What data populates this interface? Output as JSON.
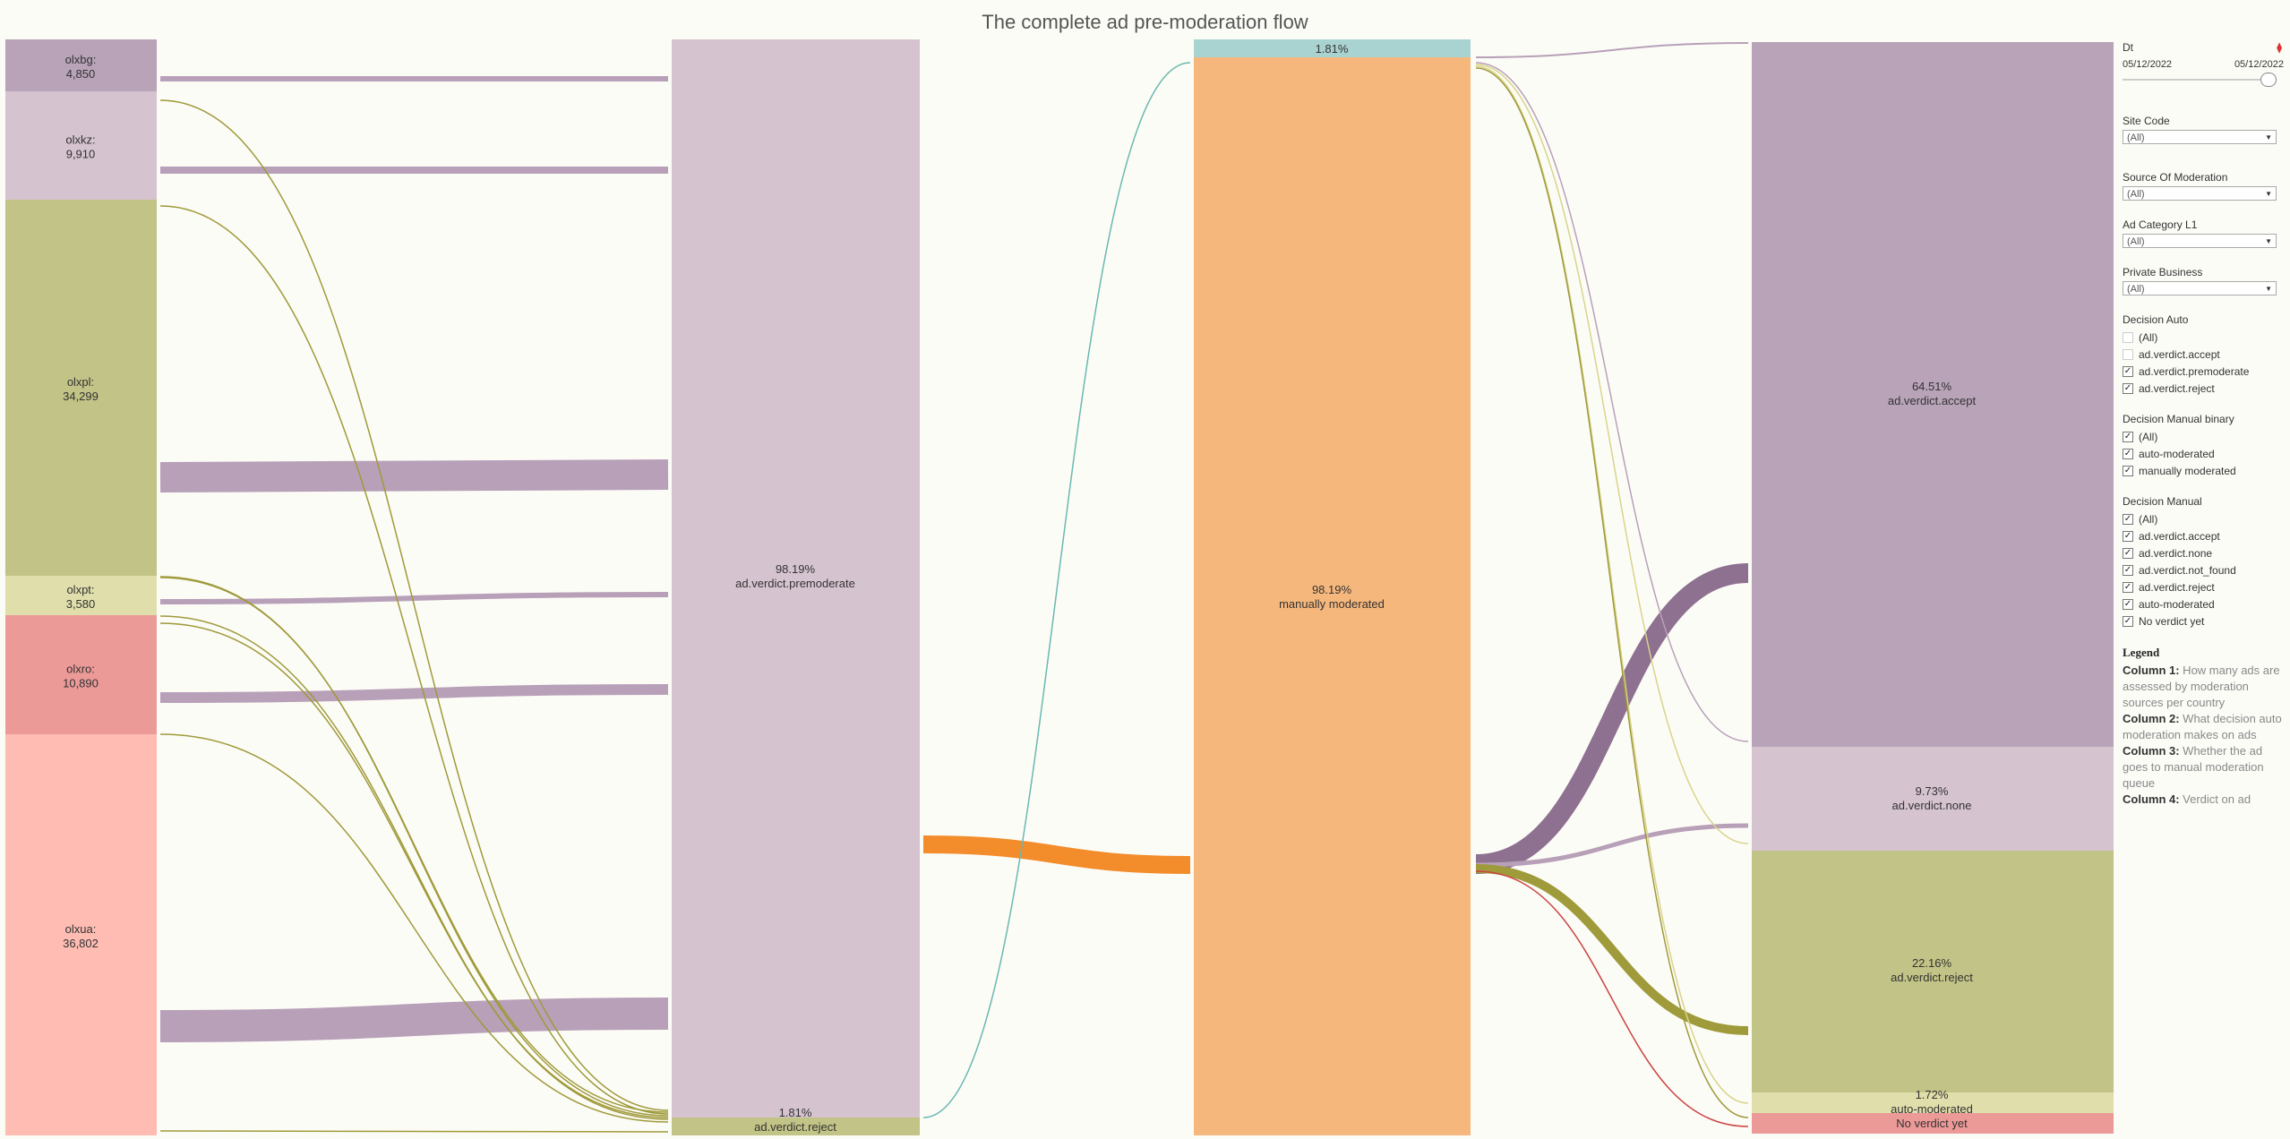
{
  "title": "The complete ad pre-moderation flow",
  "colors": {
    "olxbg": "#b8a3b8",
    "olxkz": "#d5c3cf",
    "olxpl": "#c2c386",
    "olxpt": "#e0dfab",
    "olxro": "#ec9a98",
    "olxua": "#febcb3",
    "premoderate": "#d5c3cf",
    "reject_c2": "#c2c386",
    "auto_moderated": "#a9d3d0",
    "manually_moderated": "#f6b77d",
    "accept": "#b8a3b8",
    "none": "#d5c3cf",
    "reject_c4": "#c2c386",
    "auto_moderated_c4": "#e0dfab",
    "no_verdict": "#ec9a98",
    "link_purple": "#b8a0b8",
    "link_olive": "#9f9a3a",
    "link_teal": "#6ab8b1",
    "link_orange": "#f38c2b",
    "link_dark_purple": "#8e7090",
    "link_pink": "#c44",
    "link_yellow": "#d8d48a"
  },
  "columns": {
    "countries": [
      {
        "key": "olxbg",
        "label": "olxbg:",
        "value": "4,850"
      },
      {
        "key": "olxkz",
        "label": "olxkz:",
        "value": "9,910"
      },
      {
        "key": "olxpl",
        "label": "olxpl:",
        "value": "34,299"
      },
      {
        "key": "olxpt",
        "label": "olxpt:",
        "value": "3,580"
      },
      {
        "key": "olxro",
        "label": "olxro:",
        "value": "10,890"
      },
      {
        "key": "olxua",
        "label": "olxua:",
        "value": "36,802"
      }
    ],
    "auto_decision": [
      {
        "key": "premoderate",
        "pct": "98.19%",
        "label": "ad.verdict.premoderate"
      },
      {
        "key": "reject_c2",
        "pct": "1.81%",
        "label": "ad.verdict.reject"
      }
    ],
    "manual_binary": [
      {
        "key": "auto_moderated",
        "pct": "1.81%",
        "label": "auto-moderated"
      },
      {
        "key": "manually_moderated",
        "pct": "98.19%",
        "label": "manually moderated"
      }
    ],
    "verdict": [
      {
        "key": "accept",
        "pct": "64.51%",
        "label": "ad.verdict.accept"
      },
      {
        "key": "none",
        "pct": "9.73%",
        "label": "ad.verdict.none"
      },
      {
        "key": "reject_c4",
        "pct": "22.16%",
        "label": "ad.verdict.reject"
      },
      {
        "key": "auto_moderated_c4",
        "pct": "1.72%",
        "label": "auto-moderated"
      },
      {
        "key": "no_verdict",
        "pct": "1.88%",
        "label": "No verdict yet"
      }
    ]
  },
  "filters": {
    "dt": {
      "label": "Dt",
      "from": "05/12/2022",
      "to": "05/12/2022"
    },
    "site_code": {
      "label": "Site Code",
      "value": "(All)"
    },
    "source_of_moderation": {
      "label": "Source Of Moderation",
      "value": "(All)"
    },
    "ad_category": {
      "label": "Ad Category L1",
      "value": "(All)"
    },
    "private_business": {
      "label": "Private Business",
      "value": "(All)"
    },
    "decision_auto": {
      "label": "Decision Auto",
      "items": [
        {
          "text": "(All)",
          "checked": false
        },
        {
          "text": "ad.verdict.accept",
          "checked": false
        },
        {
          "text": "ad.verdict.premoderate",
          "checked": true
        },
        {
          "text": "ad.verdict.reject",
          "checked": true
        }
      ]
    },
    "decision_manual_binary": {
      "label": "Decision Manual binary",
      "items": [
        {
          "text": "(All)",
          "checked": true
        },
        {
          "text": "auto-moderated",
          "checked": true
        },
        {
          "text": "manually moderated",
          "checked": true
        }
      ]
    },
    "decision_manual": {
      "label": "Decision Manual",
      "items": [
        {
          "text": "(All)",
          "checked": true
        },
        {
          "text": "ad.verdict.accept",
          "checked": true
        },
        {
          "text": "ad.verdict.none",
          "checked": true
        },
        {
          "text": "ad.verdict.not_found",
          "checked": true
        },
        {
          "text": "ad.verdict.reject",
          "checked": true
        },
        {
          "text": "auto-moderated",
          "checked": true
        },
        {
          "text": "No verdict yet",
          "checked": true
        }
      ]
    }
  },
  "legend": {
    "title": "Legend",
    "lines": [
      {
        "head": "Column 1:",
        "text": " How many ads are assessed by moderation sources per country"
      },
      {
        "head": "Column 2:",
        "text": " What decision auto moderation makes on ads"
      },
      {
        "head": "Column 3:",
        "text": " Whether the ad goes to manual moderation queue"
      },
      {
        "head": "Column 4:",
        "text": " Verdict on ad"
      }
    ]
  }
}
